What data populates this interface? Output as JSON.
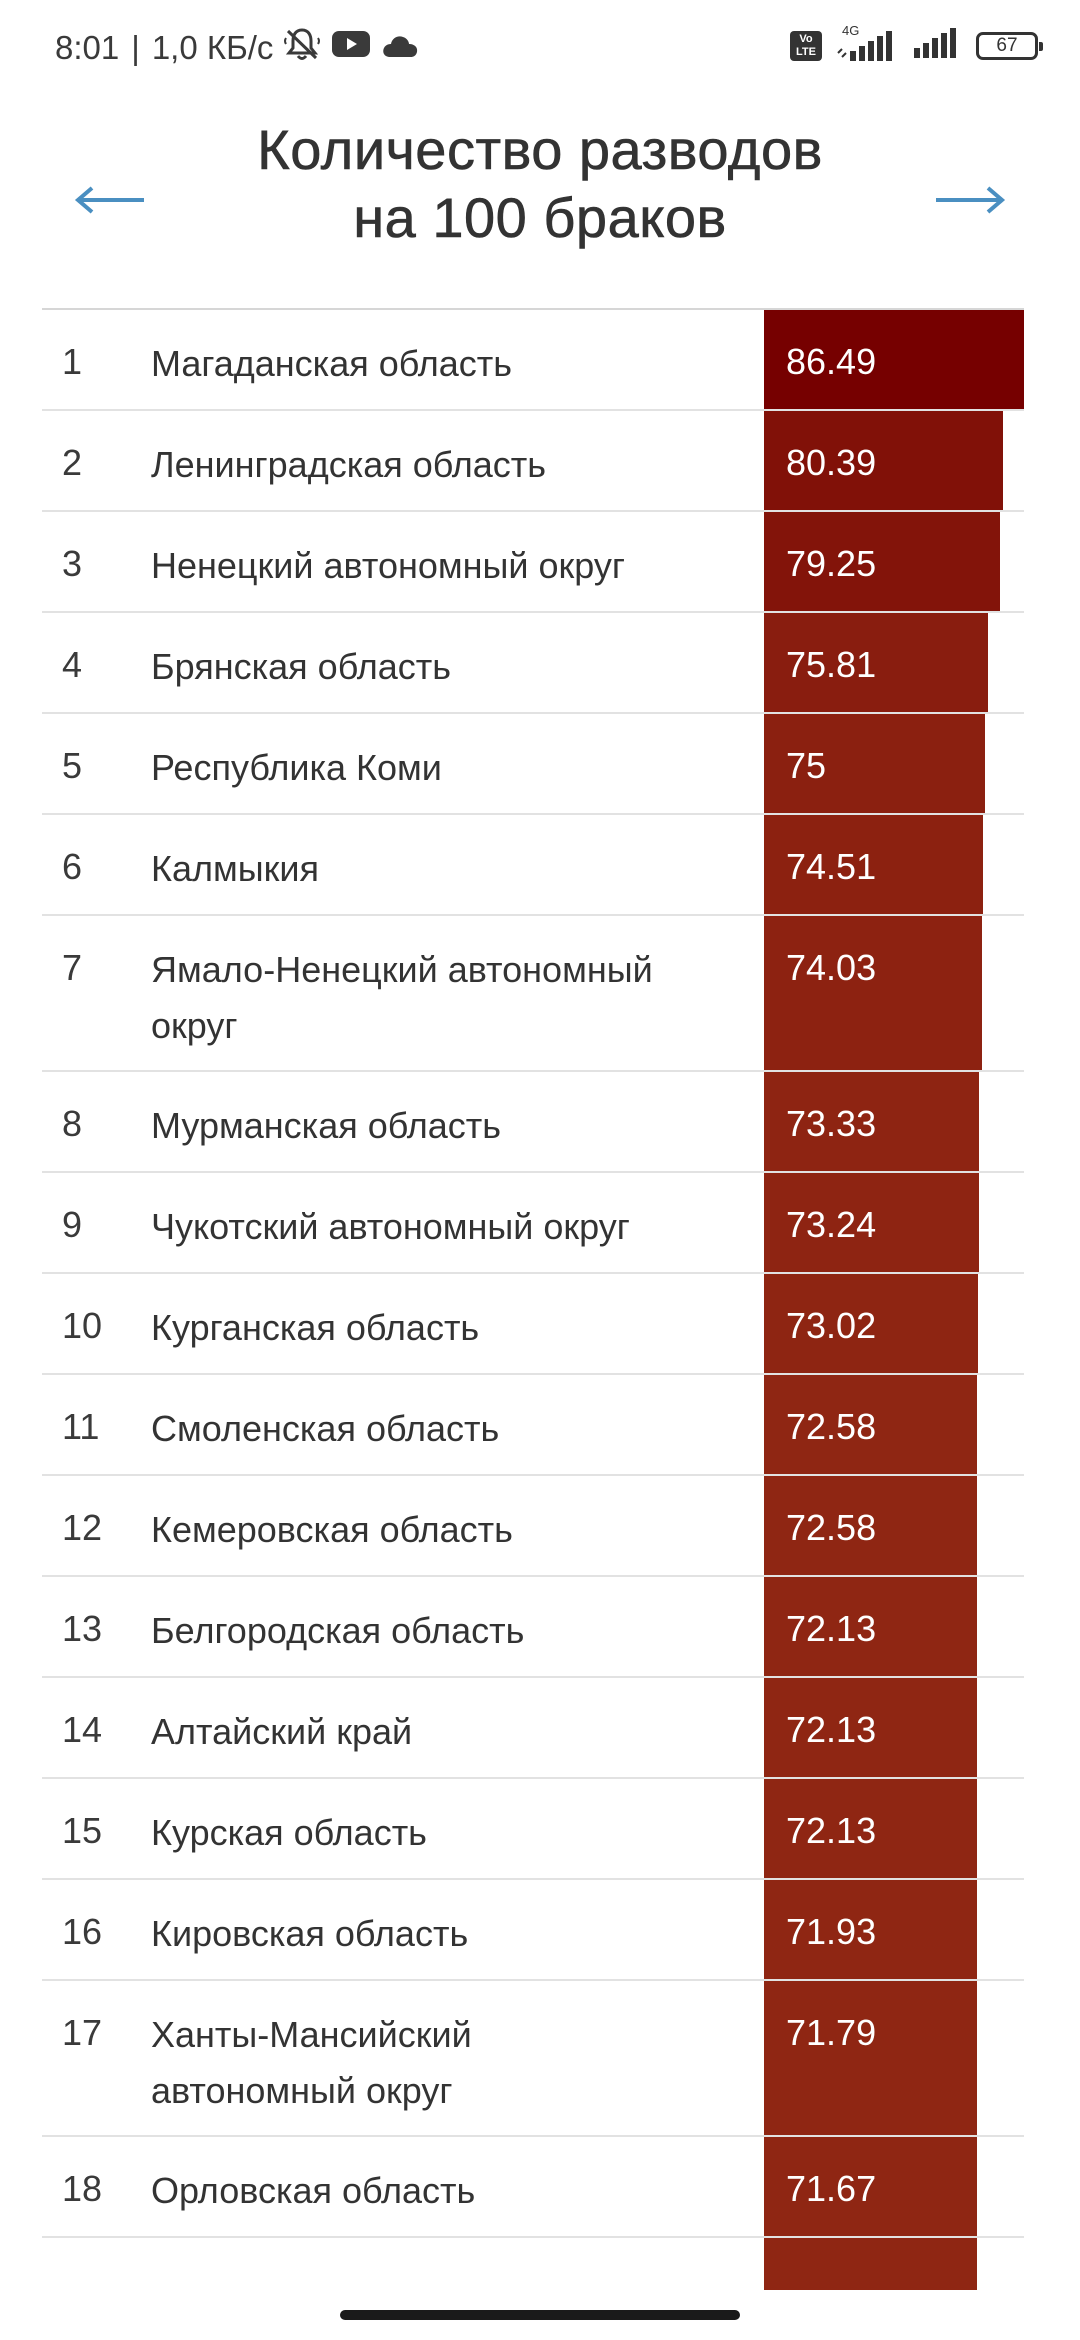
{
  "status_bar": {
    "time": "8:01",
    "separator": "|",
    "speed": "1,0 КБ/с",
    "icons": [
      "notifications-muted-icon",
      "youtube-icon",
      "cloud-icon",
      "volte-icon",
      "signal-icon",
      "signal-icon",
      "battery-icon"
    ],
    "volte_label": "Vo LTE",
    "network_type": "4G",
    "battery_level": "67"
  },
  "header": {
    "title_line1": "Количество разводов",
    "title_line2": "на 100 браков",
    "prev_icon": "arrow-left-icon",
    "next_icon": "arrow-right-icon"
  },
  "colors": {
    "arrow": "#4a8fc1",
    "bar_max": "#760000",
    "bar_low": "#8f2613",
    "divider": "#e2e2e2"
  },
  "table": {
    "max_value": 86.49,
    "rows": [
      {
        "rank": "1",
        "name": "Магаданская область",
        "value": "86.49"
      },
      {
        "rank": "2",
        "name": "Ленинградская область",
        "value": "80.39"
      },
      {
        "rank": "3",
        "name": "Ненецкий автономный округ",
        "value": "79.25"
      },
      {
        "rank": "4",
        "name": "Брянская область",
        "value": "75.81"
      },
      {
        "rank": "5",
        "name": "Республика Коми",
        "value": "75"
      },
      {
        "rank": "6",
        "name": "Калмыкия",
        "value": "74.51"
      },
      {
        "rank": "7",
        "name": "Ямало-Ненецкий автономный округ",
        "value": "74.03"
      },
      {
        "rank": "8",
        "name": "Мурманская область",
        "value": "73.33"
      },
      {
        "rank": "9",
        "name": "Чукотский автономный округ",
        "value": "73.24"
      },
      {
        "rank": "10",
        "name": "Курганская область",
        "value": "73.02"
      },
      {
        "rank": "11",
        "name": "Смоленская область",
        "value": "72.58"
      },
      {
        "rank": "12",
        "name": "Кемеровская область",
        "value": "72.58"
      },
      {
        "rank": "13",
        "name": "Белгородская область",
        "value": "72.13"
      },
      {
        "rank": "14",
        "name": "Алтайский край",
        "value": "72.13"
      },
      {
        "rank": "15",
        "name": "Курская область",
        "value": "72.13"
      },
      {
        "rank": "16",
        "name": "Кировская область",
        "value": "71.93"
      },
      {
        "rank": "17",
        "name": "Ханты-Мансийский автономный округ",
        "value": "71.79"
      },
      {
        "rank": "18",
        "name": "Орловская область",
        "value": "71.67"
      }
    ]
  }
}
